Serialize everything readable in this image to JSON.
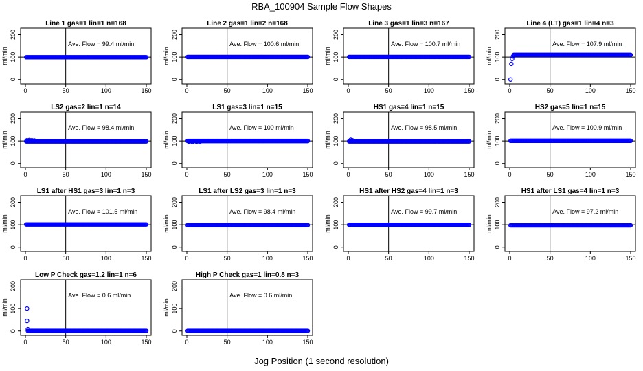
{
  "figure": {
    "title": "RBA_100904  Sample Flow Shapes",
    "xlabel": "Jog Position (1 second resolution)"
  },
  "chart_data": [
    {
      "type": "scatter",
      "title": "Line 1 gas=1 lin=1 n=168",
      "ylabel": "ml/min",
      "annotation": "Ave. Flow =  99.4  ml/min",
      "xlim": [
        0,
        150
      ],
      "ylim": [
        -10,
        220
      ],
      "xticks": [
        "0",
        "50",
        "100",
        "150"
      ],
      "yticks": [
        "0",
        "100",
        "200"
      ],
      "vline": 50,
      "hline": 100,
      "series": [
        {
          "name": "",
          "x_start": 1,
          "x_end": 150,
          "level": 99.4,
          "start_points": []
        }
      ]
    },
    {
      "type": "scatter",
      "title": "Line 2 gas=1 lin=2 n=168",
      "ylabel": "ml/min",
      "annotation": "Ave. Flow =  100.6  ml/min",
      "xlim": [
        0,
        150
      ],
      "ylim": [
        -10,
        220
      ],
      "xticks": [
        "0",
        "50",
        "100",
        "150"
      ],
      "yticks": [
        "0",
        "100",
        "200"
      ],
      "vline": 50,
      "hline": 100,
      "series": [
        {
          "name": "",
          "x_start": 1,
          "x_end": 150,
          "level": 100.6,
          "start_points": []
        }
      ]
    },
    {
      "type": "scatter",
      "title": "Line 3 gas=1 lin=3 n=167",
      "ylabel": "ml/min",
      "annotation": "Ave. Flow =  100.7  ml/min",
      "xlim": [
        0,
        150
      ],
      "ylim": [
        -10,
        220
      ],
      "xticks": [
        "0",
        "50",
        "100",
        "150"
      ],
      "yticks": [
        "0",
        "100",
        "200"
      ],
      "vline": 50,
      "hline": 100,
      "series": [
        {
          "name": "",
          "x_start": 1,
          "x_end": 150,
          "level": 100.7,
          "start_points": []
        }
      ]
    },
    {
      "type": "scatter",
      "title": "Line 4 (LT) gas=1 lin=4 n=3",
      "ylabel": "ml/min",
      "annotation": "Ave. Flow =  107.9  ml/min",
      "xlim": [
        0,
        150
      ],
      "ylim": [
        -10,
        220
      ],
      "xticks": [
        "0",
        "50",
        "100",
        "150"
      ],
      "yticks": [
        "0",
        "100",
        "200"
      ],
      "vline": 50,
      "hline": 100,
      "series": [
        {
          "name": "",
          "x_start": 5,
          "x_end": 150,
          "level": 110,
          "start_points": [
            [
              1,
              0
            ],
            [
              2,
              70
            ],
            [
              3,
              92
            ],
            [
              4,
              103
            ]
          ]
        }
      ]
    },
    {
      "type": "scatter",
      "title": "LS2 gas=2 lin=1 n=14",
      "ylabel": "ml/min",
      "annotation": "Ave. Flow =  98.4  ml/min",
      "xlim": [
        0,
        150
      ],
      "ylim": [
        -10,
        220
      ],
      "xticks": [
        "0",
        "50",
        "100",
        "150"
      ],
      "yticks": [
        "0",
        "100",
        "200"
      ],
      "vline": 50,
      "hline": 100,
      "series": [
        {
          "name": "",
          "x_start": 1,
          "x_end": 150,
          "level": 98.4,
          "start_points": [
            [
              2,
              103
            ],
            [
              5,
              104
            ],
            [
              8,
              103
            ],
            [
              11,
              102
            ]
          ]
        }
      ]
    },
    {
      "type": "scatter",
      "title": "LS1 gas=3 lin=1 n=15",
      "ylabel": "ml/min",
      "annotation": "Ave. Flow =  100  ml/min",
      "xlim": [
        0,
        150
      ],
      "ylim": [
        -10,
        220
      ],
      "xticks": [
        "0",
        "50",
        "100",
        "150"
      ],
      "yticks": [
        "0",
        "100",
        "200"
      ],
      "vline": 50,
      "hline": 100,
      "series": [
        {
          "name": "",
          "x_start": 1,
          "x_end": 150,
          "level": 100,
          "start_points": [
            [
              3,
              97
            ],
            [
              7,
              96
            ],
            [
              12,
              97
            ],
            [
              16,
              96
            ]
          ]
        }
      ]
    },
    {
      "type": "scatter",
      "title": "HS1 gas=4 lin=1 n=15",
      "ylabel": "ml/min",
      "annotation": "Ave. Flow =  98.5  ml/min",
      "xlim": [
        0,
        150
      ],
      "ylim": [
        -10,
        220
      ],
      "xticks": [
        "0",
        "50",
        "100",
        "150"
      ],
      "yticks": [
        "0",
        "100",
        "200"
      ],
      "vline": 50,
      "hline": 100,
      "series": [
        {
          "name": "",
          "x_start": 1,
          "x_end": 150,
          "level": 98.5,
          "start_points": [
            [
              3,
              105
            ],
            [
              5,
              103
            ]
          ]
        }
      ]
    },
    {
      "type": "scatter",
      "title": "HS2 gas=5 lin=1 n=15",
      "ylabel": "ml/min",
      "annotation": "Ave. Flow =  100.9  ml/min",
      "xlim": [
        0,
        150
      ],
      "ylim": [
        -10,
        220
      ],
      "xticks": [
        "0",
        "50",
        "100",
        "150"
      ],
      "yticks": [
        "0",
        "100",
        "200"
      ],
      "vline": 50,
      "hline": 100,
      "series": [
        {
          "name": "",
          "x_start": 1,
          "x_end": 150,
          "level": 100.9,
          "start_points": []
        }
      ]
    },
    {
      "type": "scatter",
      "title": "LS1 after HS1 gas=3 lin=1 n=3",
      "ylabel": "ml/min",
      "annotation": "Ave. Flow =  101.5  ml/min",
      "xlim": [
        0,
        150
      ],
      "ylim": [
        -10,
        220
      ],
      "xticks": [
        "0",
        "50",
        "100",
        "150"
      ],
      "yticks": [
        "0",
        "100",
        "200"
      ],
      "vline": 50,
      "hline": 100,
      "series": [
        {
          "name": "",
          "x_start": 1,
          "x_end": 150,
          "level": 101.5,
          "start_points": []
        }
      ]
    },
    {
      "type": "scatter",
      "title": "LS1 after LS2 gas=3 lin=1 n=3",
      "ylabel": "ml/min",
      "annotation": "Ave. Flow =  98.4  ml/min",
      "xlim": [
        0,
        150
      ],
      "ylim": [
        -10,
        220
      ],
      "xticks": [
        "0",
        "50",
        "100",
        "150"
      ],
      "yticks": [
        "0",
        "100",
        "200"
      ],
      "vline": 50,
      "hline": 100,
      "series": [
        {
          "name": "",
          "x_start": 1,
          "x_end": 150,
          "level": 98.4,
          "start_points": []
        }
      ]
    },
    {
      "type": "scatter",
      "title": "HS1 after HS2 gas=4 lin=1 n=3",
      "ylabel": "ml/min",
      "annotation": "Ave. Flow =  99.7  ml/min",
      "xlim": [
        0,
        150
      ],
      "ylim": [
        -10,
        220
      ],
      "xticks": [
        "0",
        "50",
        "100",
        "150"
      ],
      "yticks": [
        "0",
        "100",
        "200"
      ],
      "vline": 50,
      "hline": 100,
      "series": [
        {
          "name": "",
          "x_start": 1,
          "x_end": 150,
          "level": 99.7,
          "start_points": []
        }
      ]
    },
    {
      "type": "scatter",
      "title": "HS1 after LS1 gas=4 lin=1 n=3",
      "ylabel": "ml/min",
      "annotation": "Ave. Flow =  97.2  ml/min",
      "xlim": [
        0,
        150
      ],
      "ylim": [
        -10,
        220
      ],
      "xticks": [
        "0",
        "50",
        "100",
        "150"
      ],
      "yticks": [
        "0",
        "100",
        "200"
      ],
      "vline": 50,
      "hline": 100,
      "series": [
        {
          "name": "",
          "x_start": 1,
          "x_end": 150,
          "level": 97.2,
          "start_points": []
        }
      ]
    },
    {
      "type": "scatter",
      "title": "Low P Check gas=1.2 lin=1 n=6",
      "ylabel": "ml/min",
      "annotation": "Ave. Flow =  0.6  ml/min",
      "xlim": [
        0,
        150
      ],
      "ylim": [
        -10,
        220
      ],
      "xticks": [
        "0",
        "50",
        "100",
        "150"
      ],
      "yticks": [
        "0",
        "100",
        "200"
      ],
      "vline": 50,
      "hline": null,
      "series": [
        {
          "name": "",
          "x_start": 3,
          "x_end": 150,
          "level": 0.6,
          "start_points": [
            [
              2,
              100
            ],
            [
              2,
              45
            ],
            [
              3,
              8
            ]
          ]
        }
      ]
    },
    {
      "type": "scatter",
      "title": "High P Check gas=1 lin=0.8 n=3",
      "ylabel": "ml/min",
      "annotation": "Ave. Flow =  0.6  ml/min",
      "xlim": [
        0,
        150
      ],
      "ylim": [
        -10,
        220
      ],
      "xticks": [
        "0",
        "50",
        "100",
        "150"
      ],
      "yticks": [
        "0",
        "100",
        "200"
      ],
      "vline": 50,
      "hline": null,
      "series": [
        {
          "name": "",
          "x_start": 1,
          "x_end": 150,
          "level": 0.6,
          "start_points": []
        }
      ]
    }
  ]
}
